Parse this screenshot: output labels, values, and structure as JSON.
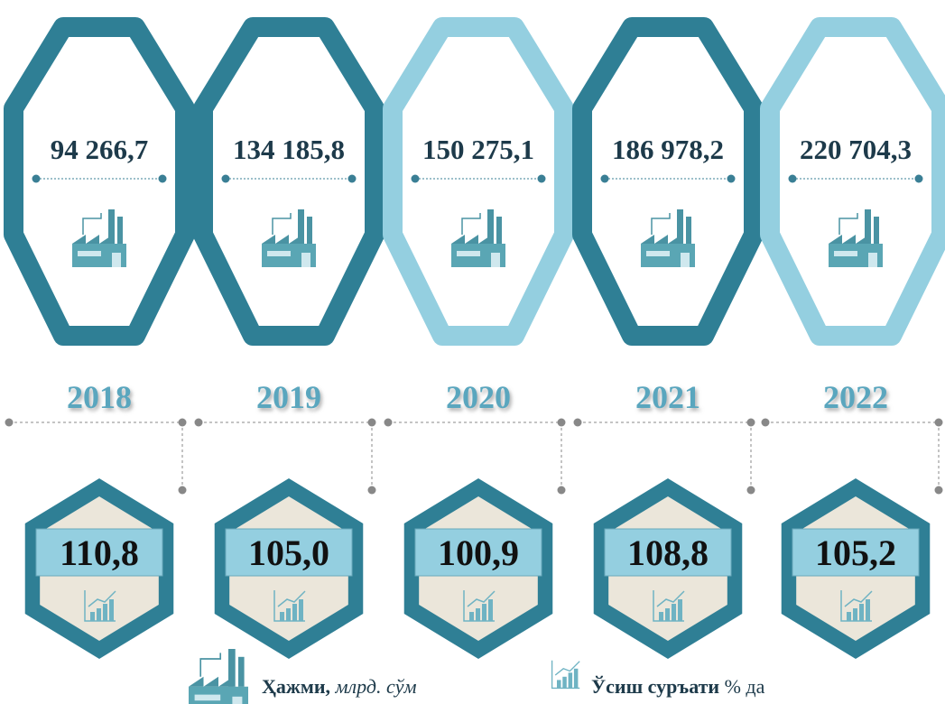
{
  "items": [
    {
      "year": "2018",
      "volume": "94 266,7",
      "growth": "110,8"
    },
    {
      "year": "2019",
      "volume": "134 185,8",
      "growth": "105,0"
    },
    {
      "year": "2020",
      "volume": "150 275,1",
      "growth": "100,9"
    },
    {
      "year": "2021",
      "volume": "186 978,2",
      "growth": "108,8"
    },
    {
      "year": "2022",
      "volume": "220 704,3",
      "growth": "105,2"
    }
  ],
  "legend": {
    "volume_label": "Ҳажми,",
    "volume_unit": "млрд. сўм",
    "growth_label": "Ўсиш суръати",
    "growth_unit": "% да"
  }
}
